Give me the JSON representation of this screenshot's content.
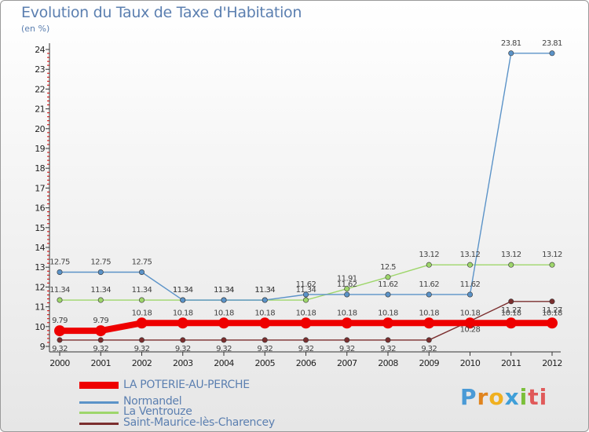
{
  "title": "Evolution du Taux de Taxe d'Habitation",
  "subtitle": "(en %)",
  "logo": [
    "P",
    "r",
    "o",
    "x",
    "i",
    "ti"
  ],
  "chart_data": {
    "type": "line",
    "x": [
      "2000",
      "2001",
      "2002",
      "2003",
      "2004",
      "2005",
      "2006",
      "2007",
      "2008",
      "2009",
      "2010",
      "2011",
      "2012"
    ],
    "ylim": [
      9,
      24
    ],
    "yticks": [
      "9",
      "10",
      "11",
      "12",
      "13",
      "14",
      "15",
      "16",
      "17",
      "18",
      "19",
      "20",
      "21",
      "22",
      "23",
      "24"
    ],
    "grid": false,
    "legend_position": "bottom-left",
    "series": [
      {
        "name": "LA POTERIE-AU-PERCHE",
        "color": "#ee0000",
        "values": [
          9.79,
          9.79,
          10.18,
          10.18,
          10.18,
          10.18,
          10.18,
          10.18,
          10.18,
          10.18,
          10.18,
          10.18,
          10.18
        ],
        "labels": [
          "9.79",
          "9.79",
          "10.18",
          "10.18",
          "10.18",
          "10.18",
          "10.18",
          "10.18",
          "10.18",
          "10.18",
          "10.18",
          "10.18",
          "10.18"
        ]
      },
      {
        "name": "Normandel",
        "color": "#5b93c8",
        "values": [
          12.75,
          12.75,
          12.75,
          11.34,
          11.34,
          11.34,
          11.62,
          11.62,
          11.62,
          11.62,
          11.62,
          23.81,
          23.81
        ],
        "labels": [
          "12.75",
          "12.75",
          "12.75",
          "11.34",
          "11.34",
          "11.34",
          "11.62",
          "11.62",
          "11.62",
          "11.62",
          "11.62",
          "23.81",
          "23.81"
        ]
      },
      {
        "name": "La Ventrouze",
        "color": "#9ed66b",
        "values": [
          11.34,
          11.34,
          11.34,
          11.34,
          11.34,
          11.34,
          11.34,
          11.91,
          12.5,
          13.12,
          13.12,
          13.12,
          13.12
        ],
        "labels": [
          "11.34",
          "11.34",
          "11.34",
          "11.34",
          "11.34",
          "11.34",
          "11.34",
          "11.91",
          "12.5",
          "13.12",
          "13.12",
          "13.12",
          "13.12"
        ]
      },
      {
        "name": "Saint-Maurice-lès-Charencey",
        "color": "#7b2e2e",
        "values": [
          9.32,
          9.32,
          9.32,
          9.32,
          9.32,
          9.32,
          9.32,
          9.32,
          9.32,
          9.32,
          10.28,
          11.27,
          11.27
        ],
        "labels": [
          "9.32",
          "9.32",
          "9.32",
          "9.32",
          "9.32",
          "9.32",
          "9.32",
          "9.32",
          "9.32",
          "9.32",
          "10.28",
          "11.27",
          "11.27"
        ]
      }
    ]
  }
}
